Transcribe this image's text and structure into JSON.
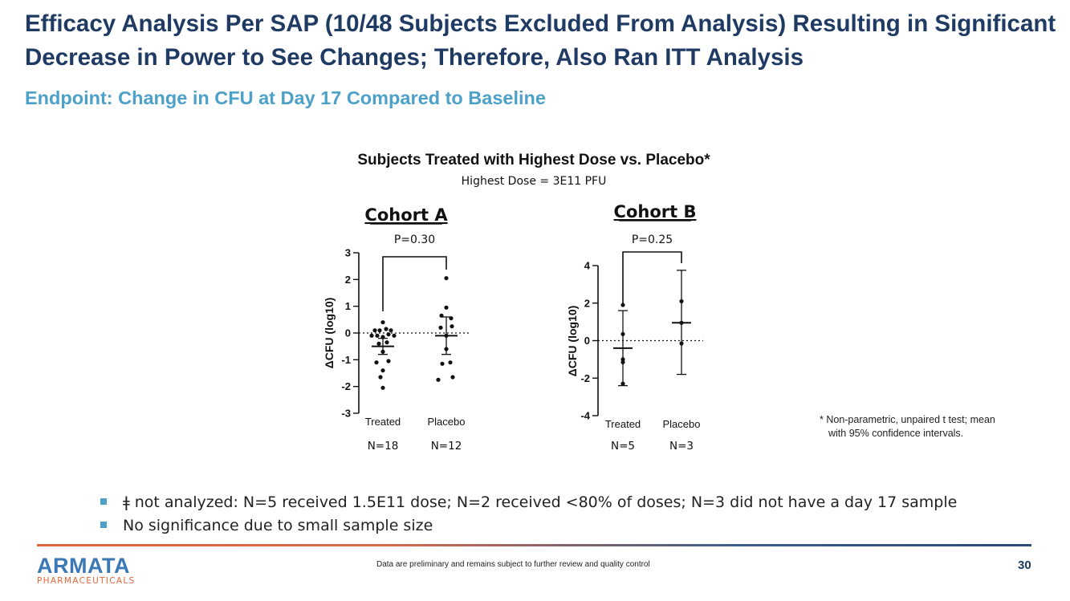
{
  "title": "Efficacy Analysis Per SAP (10/48 Subjects Excluded From Analysis) Resulting in Significant Decrease in Power to See Changes; Therefore, Also Ran ITT Analysis",
  "subtitle": "Endpoint: Change in CFU at Day 17 Compared to Baseline",
  "bullets": [
    "ǂ not analyzed: N=5 received 1.5E11 dose; N=2 received <80% of doses; N=3 did not have a day 17 sample",
    "No significance due to small sample size"
  ],
  "footnote": {
    "line1": "* Non-parametric, unpaired t test; mean",
    "line2": "with 95% confidence intervals."
  },
  "footer": {
    "logo_main": "ARMATA",
    "logo_sub": "PHARMACEUTICALS",
    "disclaimer": "Data are preliminary and remains subject to further review and quality control",
    "page_number": "30"
  },
  "colors": {
    "title": "#1f3b63",
    "subtitle": "#4da0c8",
    "logo": "#3b78b6",
    "accent": "#e0673a"
  },
  "chart_data": {
    "title": "Subjects Treated with Highest Dose vs. Placebo*",
    "subtitle": "Highest Dose = 3E11 PFU",
    "panels": [
      {
        "type": "scatter",
        "name": "Cohort A",
        "title": "Cohort A",
        "pvalue": "P=0.30",
        "ylabel": "ΔCFU (log10)",
        "ylim": [
          -3,
          3
        ],
        "yticks": [
          3,
          2,
          1,
          0,
          -1,
          -2,
          -3
        ],
        "ytick_labels": [
          "3",
          "2",
          "1",
          "0",
          "-1",
          "-2",
          "-3"
        ],
        "categories": [
          "Treated",
          "Placebo"
        ],
        "n_labels": [
          "N=18",
          "N=12"
        ],
        "groups": [
          {
            "name": "Treated",
            "points": [
              {
                "dx": 0,
                "y": 0.4
              },
              {
                "dx": -0.1,
                "y": 0.1
              },
              {
                "dx": -0.04,
                "y": 0.1
              },
              {
                "dx": 0.04,
                "y": 0.15
              },
              {
                "dx": 0.1,
                "y": 0.1
              },
              {
                "dx": -0.14,
                "y": -0.1
              },
              {
                "dx": -0.07,
                "y": -0.1
              },
              {
                "dx": 0,
                "y": -0.15
              },
              {
                "dx": 0.07,
                "y": -0.05
              },
              {
                "dx": 0.14,
                "y": -0.1
              },
              {
                "dx": -0.05,
                "y": -0.4
              },
              {
                "dx": 0.05,
                "y": -0.35
              },
              {
                "dx": 0,
                "y": -0.7
              },
              {
                "dx": -0.08,
                "y": -1.1
              },
              {
                "dx": 0.07,
                "y": -1.05
              },
              {
                "dx": 0,
                "y": -1.4
              },
              {
                "dx": -0.03,
                "y": -1.65
              },
              {
                "dx": 0,
                "y": -2.05
              }
            ],
            "mean": -0.5,
            "ci": [
              -0.8,
              -0.2
            ]
          },
          {
            "name": "Placebo",
            "points": [
              {
                "dx": 0,
                "y": 2.05
              },
              {
                "dx": 0,
                "y": 0.95
              },
              {
                "dx": -0.06,
                "y": 0.65
              },
              {
                "dx": 0.06,
                "y": 0.55
              },
              {
                "dx": -0.07,
                "y": 0.2
              },
              {
                "dx": 0.07,
                "y": 0.25
              },
              {
                "dx": 0,
                "y": -0.1
              },
              {
                "dx": 0,
                "y": -0.6
              },
              {
                "dx": -0.05,
                "y": -1.15
              },
              {
                "dx": 0.05,
                "y": -1.1
              },
              {
                "dx": -0.1,
                "y": -1.75
              },
              {
                "dx": 0.08,
                "y": -1.65
              }
            ],
            "mean": -0.1,
            "ci": [
              -0.8,
              0.6
            ]
          }
        ]
      },
      {
        "type": "scatter",
        "name": "Cohort B",
        "title": "Cohort B",
        "pvalue": "P=0.25",
        "ylabel": "ΔCFU (log10)",
        "ylim": [
          -4,
          4
        ],
        "yticks": [
          4,
          2,
          0,
          -2,
          -4
        ],
        "ytick_labels": [
          "4",
          "2",
          "0",
          "-2",
          "-4"
        ],
        "categories": [
          "Treated",
          "Placebo"
        ],
        "n_labels": [
          "N=5",
          "N=3"
        ],
        "groups": [
          {
            "name": "Treated",
            "points": [
              {
                "dx": 0,
                "y": 1.9
              },
              {
                "dx": 0,
                "y": 0.35
              },
              {
                "dx": 0,
                "y": -1.0
              },
              {
                "dx": 0,
                "y": -1.15
              },
              {
                "dx": 0,
                "y": -2.3
              }
            ],
            "mean": -0.4,
            "ci": [
              -2.4,
              1.6
            ]
          },
          {
            "name": "Placebo",
            "points": [
              {
                "dx": 0,
                "y": 2.1
              },
              {
                "dx": 0,
                "y": 0.95
              },
              {
                "dx": 0,
                "y": -0.15
              }
            ],
            "mean": 0.95,
            "ci": [
              -1.8,
              3.75
            ]
          }
        ]
      }
    ]
  }
}
